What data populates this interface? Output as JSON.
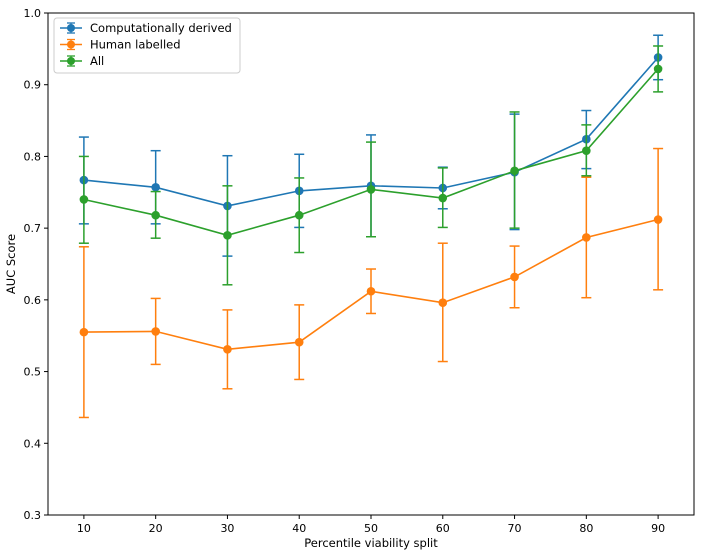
{
  "chart_data": {
    "type": "line",
    "title": "",
    "xlabel": "Percentile viability split",
    "ylabel": "AUC Score",
    "xlim": [
      5,
      95
    ],
    "ylim": [
      0.3,
      1.0
    ],
    "x": [
      10,
      20,
      30,
      40,
      50,
      60,
      70,
      80,
      90
    ],
    "x_ticks": [
      "10",
      "20",
      "30",
      "40",
      "50",
      "60",
      "70",
      "80",
      "90"
    ],
    "y_ticks": [
      "0.3",
      "0.4",
      "0.5",
      "0.6",
      "0.7",
      "0.8",
      "0.9",
      "1.0"
    ],
    "legend_position": "top-left",
    "grid": false,
    "series": [
      {
        "name": "Computationally derived",
        "color": "#1f77b4",
        "values": [
          0.767,
          0.757,
          0.731,
          0.752,
          0.759,
          0.756,
          0.778,
          0.824,
          0.938
        ],
        "err_low": [
          0.706,
          0.706,
          0.661,
          0.701,
          0.688,
          0.727,
          0.698,
          0.783,
          0.907
        ],
        "err_high": [
          0.827,
          0.808,
          0.801,
          0.803,
          0.83,
          0.785,
          0.859,
          0.864,
          0.969
        ]
      },
      {
        "name": "Human labelled",
        "color": "#ff7f0e",
        "values": [
          0.555,
          0.556,
          0.531,
          0.541,
          0.612,
          0.596,
          0.632,
          0.687,
          0.712
        ],
        "err_low": [
          0.436,
          0.51,
          0.476,
          0.489,
          0.581,
          0.514,
          0.589,
          0.603,
          0.614
        ],
        "err_high": [
          0.674,
          0.602,
          0.586,
          0.593,
          0.643,
          0.679,
          0.675,
          0.771,
          0.811
        ]
      },
      {
        "name": "All",
        "color": "#2ca02c",
        "values": [
          0.74,
          0.718,
          0.69,
          0.718,
          0.754,
          0.742,
          0.78,
          0.808,
          0.922
        ],
        "err_low": [
          0.679,
          0.686,
          0.621,
          0.666,
          0.688,
          0.701,
          0.7,
          0.773,
          0.89
        ],
        "err_high": [
          0.8,
          0.751,
          0.759,
          0.77,
          0.82,
          0.784,
          0.862,
          0.844,
          0.954
        ]
      }
    ]
  }
}
